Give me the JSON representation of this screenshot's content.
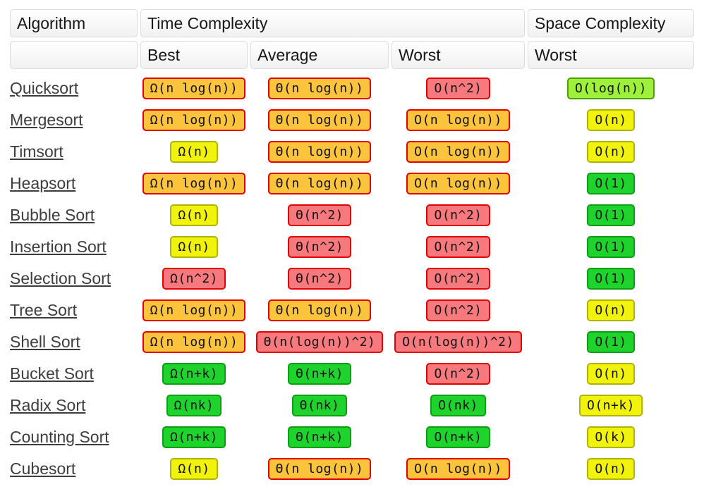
{
  "header": {
    "algorithm": "Algorithm",
    "time_complexity": "Time Complexity",
    "space_complexity": "Space Complexity",
    "sub_best": "Best",
    "sub_average": "Average",
    "sub_worst_time": "Worst",
    "sub_worst_space": "Worst"
  },
  "colors": {
    "orange_bg": "#FCC33C",
    "orange_border": "#E20000",
    "red_bg": "#F8797D",
    "red_border": "#E20000",
    "yellow_bg": "#F2F30D",
    "yellow_border": "#AEB404",
    "yellowgreen_bg": "#9EF03A",
    "yellowgreen_border": "#4F9E05",
    "green_bg": "#1ED42C",
    "green_border": "#0D9E13",
    "link_color": "#3D3D3D"
  },
  "rows": [
    {
      "name": "Quicksort",
      "best": {
        "text": "Ω(n log(n))",
        "level": "orange"
      },
      "average": {
        "text": "Θ(n log(n))",
        "level": "orange"
      },
      "worst": {
        "text": "O(n^2)",
        "level": "red"
      },
      "space": {
        "text": "O(log(n))",
        "level": "yellowgreen"
      }
    },
    {
      "name": "Mergesort",
      "best": {
        "text": "Ω(n log(n))",
        "level": "orange"
      },
      "average": {
        "text": "Θ(n log(n))",
        "level": "orange"
      },
      "worst": {
        "text": "O(n log(n))",
        "level": "orange"
      },
      "space": {
        "text": "O(n)",
        "level": "yellow"
      }
    },
    {
      "name": "Timsort",
      "best": {
        "text": "Ω(n)",
        "level": "yellow"
      },
      "average": {
        "text": "Θ(n log(n))",
        "level": "orange"
      },
      "worst": {
        "text": "O(n log(n))",
        "level": "orange"
      },
      "space": {
        "text": "O(n)",
        "level": "yellow"
      }
    },
    {
      "name": "Heapsort",
      "best": {
        "text": "Ω(n log(n))",
        "level": "orange"
      },
      "average": {
        "text": "Θ(n log(n))",
        "level": "orange"
      },
      "worst": {
        "text": "O(n log(n))",
        "level": "orange"
      },
      "space": {
        "text": "O(1)",
        "level": "green"
      }
    },
    {
      "name": "Bubble Sort",
      "best": {
        "text": "Ω(n)",
        "level": "yellow"
      },
      "average": {
        "text": "Θ(n^2)",
        "level": "red"
      },
      "worst": {
        "text": "O(n^2)",
        "level": "red"
      },
      "space": {
        "text": "O(1)",
        "level": "green"
      }
    },
    {
      "name": "Insertion Sort",
      "best": {
        "text": "Ω(n)",
        "level": "yellow"
      },
      "average": {
        "text": "Θ(n^2)",
        "level": "red"
      },
      "worst": {
        "text": "O(n^2)",
        "level": "red"
      },
      "space": {
        "text": "O(1)",
        "level": "green"
      }
    },
    {
      "name": "Selection Sort",
      "best": {
        "text": "Ω(n^2)",
        "level": "red"
      },
      "average": {
        "text": "Θ(n^2)",
        "level": "red"
      },
      "worst": {
        "text": "O(n^2)",
        "level": "red"
      },
      "space": {
        "text": "O(1)",
        "level": "green"
      }
    },
    {
      "name": "Tree Sort",
      "best": {
        "text": "Ω(n log(n))",
        "level": "orange"
      },
      "average": {
        "text": "Θ(n log(n))",
        "level": "orange"
      },
      "worst": {
        "text": "O(n^2)",
        "level": "red"
      },
      "space": {
        "text": "O(n)",
        "level": "yellow"
      }
    },
    {
      "name": "Shell Sort",
      "best": {
        "text": "Ω(n log(n))",
        "level": "orange"
      },
      "average": {
        "text": "Θ(n(log(n))^2)",
        "level": "red"
      },
      "worst": {
        "text": "O(n(log(n))^2)",
        "level": "red"
      },
      "space": {
        "text": "O(1)",
        "level": "green"
      }
    },
    {
      "name": "Bucket Sort",
      "best": {
        "text": "Ω(n+k)",
        "level": "green"
      },
      "average": {
        "text": "Θ(n+k)",
        "level": "green"
      },
      "worst": {
        "text": "O(n^2)",
        "level": "red"
      },
      "space": {
        "text": "O(n)",
        "level": "yellow"
      }
    },
    {
      "name": "Radix Sort",
      "best": {
        "text": "Ω(nk)",
        "level": "green"
      },
      "average": {
        "text": "Θ(nk)",
        "level": "green"
      },
      "worst": {
        "text": "O(nk)",
        "level": "green"
      },
      "space": {
        "text": "O(n+k)",
        "level": "yellow"
      }
    },
    {
      "name": "Counting Sort",
      "best": {
        "text": "Ω(n+k)",
        "level": "green"
      },
      "average": {
        "text": "Θ(n+k)",
        "level": "green"
      },
      "worst": {
        "text": "O(n+k)",
        "level": "green"
      },
      "space": {
        "text": "O(k)",
        "level": "yellow"
      }
    },
    {
      "name": "Cubesort",
      "best": {
        "text": "Ω(n)",
        "level": "yellow"
      },
      "average": {
        "text": "Θ(n log(n))",
        "level": "orange"
      },
      "worst": {
        "text": "O(n log(n))",
        "level": "orange"
      },
      "space": {
        "text": "O(n)",
        "level": "yellow"
      }
    }
  ]
}
